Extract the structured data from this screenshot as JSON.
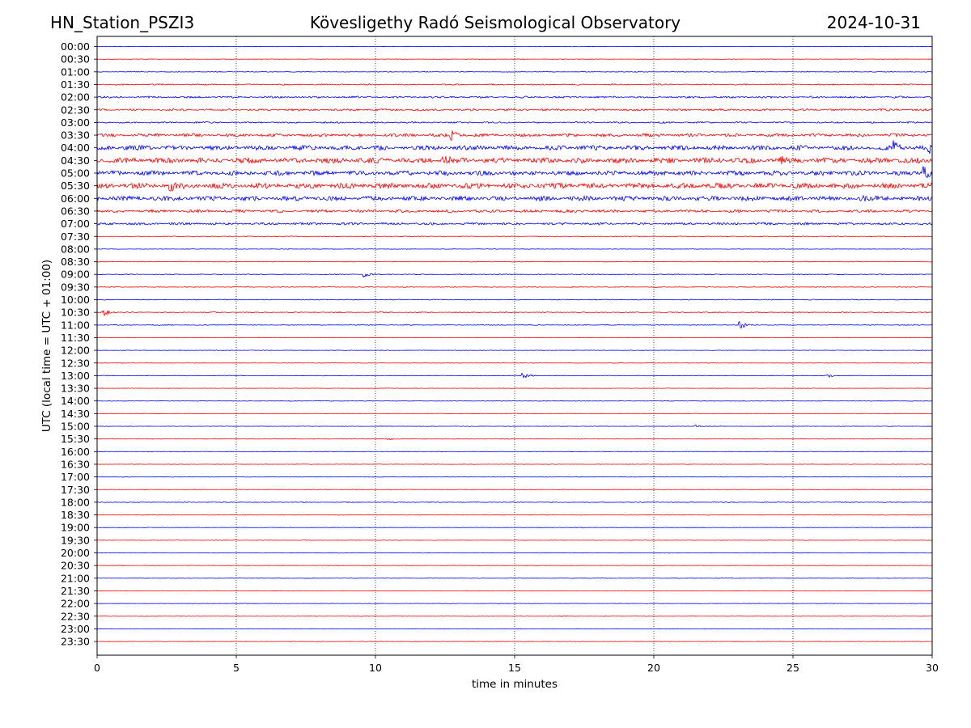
{
  "header": {
    "station": "HN_Station_PSZI3",
    "observatory": "Kövesligethy Radó Seismological Observatory",
    "date": "2024-10-31"
  },
  "chart_data": {
    "type": "line",
    "title": "Kövesligethy Radó Seismological Observatory",
    "xlabel": "time in minutes",
    "ylabel": "UTC (local time = UTC + 01:00)",
    "xlim": [
      0,
      30
    ],
    "x_ticks": [
      "0",
      "5",
      "10",
      "15",
      "20",
      "25",
      "30"
    ],
    "vertical_grid_minutes": [
      5,
      10,
      15,
      20,
      25
    ],
    "grid": "vertical dotted",
    "series_colors": [
      "#0000ff",
      "#ff0000"
    ],
    "rows": [
      {
        "label": "00:00",
        "amplitude": 0.3
      },
      {
        "label": "00:30",
        "amplitude": 0.3
      },
      {
        "label": "01:00",
        "amplitude": 0.4
      },
      {
        "label": "01:30",
        "amplitude": 0.8
      },
      {
        "label": "02:00",
        "amplitude": 1.2
      },
      {
        "label": "02:30",
        "amplitude": 1.3
      },
      {
        "label": "03:00",
        "amplitude": 1.0
      },
      {
        "label": "03:30",
        "amplitude": 2.0
      },
      {
        "label": "04:00",
        "amplitude": 3.0
      },
      {
        "label": "04:30",
        "amplitude": 3.5
      },
      {
        "label": "05:00",
        "amplitude": 3.0
      },
      {
        "label": "05:30",
        "amplitude": 3.5
      },
      {
        "label": "06:00",
        "amplitude": 3.0
      },
      {
        "label": "06:30",
        "amplitude": 1.8
      },
      {
        "label": "07:00",
        "amplitude": 1.5
      },
      {
        "label": "07:30",
        "amplitude": 0.4
      },
      {
        "label": "08:00",
        "amplitude": 0.3
      },
      {
        "label": "08:30",
        "amplitude": 0.4
      },
      {
        "label": "09:00",
        "amplitude": 0.5
      },
      {
        "label": "09:30",
        "amplitude": 0.5
      },
      {
        "label": "10:00",
        "amplitude": 0.5
      },
      {
        "label": "10:30",
        "amplitude": 0.6
      },
      {
        "label": "11:00",
        "amplitude": 0.5
      },
      {
        "label": "11:30",
        "amplitude": 0.3
      },
      {
        "label": "12:00",
        "amplitude": 0.3
      },
      {
        "label": "12:30",
        "amplitude": 0.3
      },
      {
        "label": "13:00",
        "amplitude": 0.4
      },
      {
        "label": "13:30",
        "amplitude": 0.3
      },
      {
        "label": "14:00",
        "amplitude": 0.4
      },
      {
        "label": "14:30",
        "amplitude": 0.3
      },
      {
        "label": "15:00",
        "amplitude": 0.3
      },
      {
        "label": "15:30",
        "amplitude": 0.3
      },
      {
        "label": "16:00",
        "amplitude": 0.3
      },
      {
        "label": "16:30",
        "amplitude": 0.3
      },
      {
        "label": "17:00",
        "amplitude": 0.3
      },
      {
        "label": "17:30",
        "amplitude": 0.3
      },
      {
        "label": "18:00",
        "amplitude": 0.5
      },
      {
        "label": "18:30",
        "amplitude": 0.4
      },
      {
        "label": "19:00",
        "amplitude": 0.3
      },
      {
        "label": "19:30",
        "amplitude": 0.3
      },
      {
        "label": "20:00",
        "amplitude": 0.3
      },
      {
        "label": "20:30",
        "amplitude": 0.3
      },
      {
        "label": "21:00",
        "amplitude": 0.3
      },
      {
        "label": "21:30",
        "amplitude": 0.3
      },
      {
        "label": "22:00",
        "amplitude": 0.3
      },
      {
        "label": "22:30",
        "amplitude": 0.3
      },
      {
        "label": "23:00",
        "amplitude": 0.3
      },
      {
        "label": "23:30",
        "amplitude": 0.3
      }
    ],
    "events": [
      {
        "row": "03:30",
        "minute": 12.7,
        "amp": 6
      },
      {
        "row": "04:00",
        "minute": 28.6,
        "amp": 7
      },
      {
        "row": "04:00",
        "minute": 29.9,
        "amp": 6
      },
      {
        "row": "04:30",
        "minute": 12.4,
        "amp": 8
      },
      {
        "row": "04:30",
        "minute": 24.5,
        "amp": 6
      },
      {
        "row": "05:00",
        "minute": 29.7,
        "amp": 9
      },
      {
        "row": "05:30",
        "minute": 2.6,
        "amp": 7
      },
      {
        "row": "06:00",
        "minute": 27.4,
        "amp": 6
      },
      {
        "row": "09:00",
        "minute": 9.6,
        "amp": 3
      },
      {
        "row": "10:30",
        "minute": 0.2,
        "amp": 6
      },
      {
        "row": "11:00",
        "minute": 23.1,
        "amp": 5
      },
      {
        "row": "13:00",
        "minute": 15.3,
        "amp": 4
      },
      {
        "row": "13:00",
        "minute": 26.2,
        "amp": 3
      },
      {
        "row": "15:00",
        "minute": 21.5,
        "amp": 2
      },
      {
        "row": "15:30",
        "minute": 10.4,
        "amp": 2
      }
    ]
  }
}
